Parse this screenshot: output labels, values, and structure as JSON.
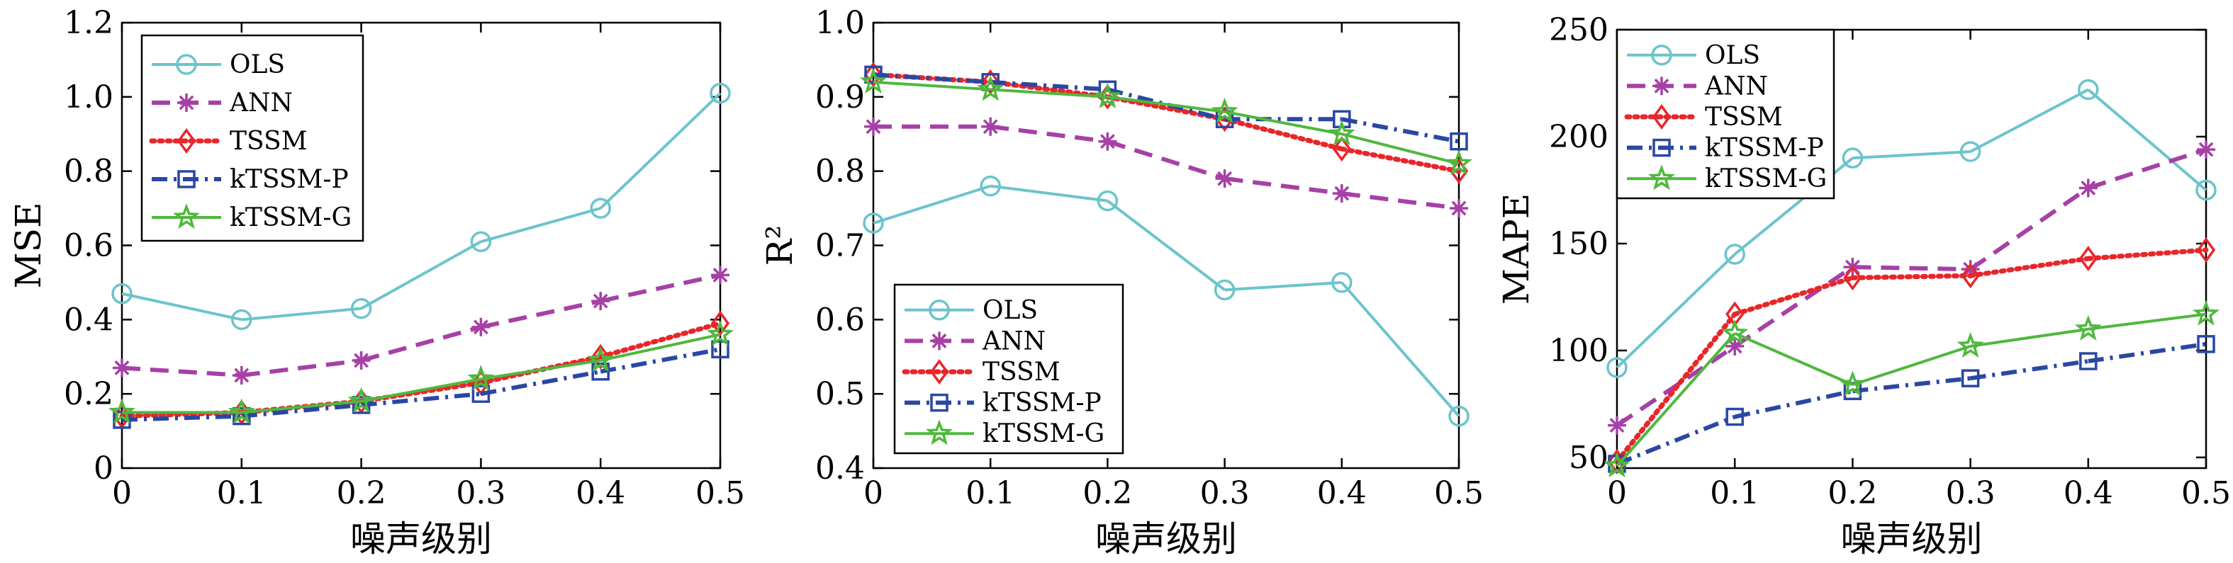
{
  "figure": {
    "background": "#ffffff"
  },
  "series_styles": {
    "OLS": {
      "color": "#6cc4cb",
      "dash": "solid",
      "marker": "circle"
    },
    "ANN": {
      "color": "#a640a6",
      "dash": "dashed",
      "marker": "asterisk"
    },
    "TSSM": {
      "color": "#e8262a",
      "dash": "dotted",
      "marker": "diamond"
    },
    "kTSSM-P": {
      "color": "#2a47a4",
      "dash": "dashdot",
      "marker": "square"
    },
    "kTSSM-G": {
      "color": "#4fb83d",
      "dash": "solid",
      "marker": "star"
    }
  },
  "chart_data": [
    {
      "type": "line",
      "xlabel": "噪声级别",
      "ylabel": "MSE",
      "x": [
        0,
        0.1,
        0.2,
        0.3,
        0.4,
        0.5
      ],
      "xticks": [
        "0",
        "0.1",
        "0.2",
        "0.3",
        "0.4",
        "0.5"
      ],
      "ylim": [
        0,
        1.2
      ],
      "yticks": [
        "0",
        "0.2",
        "0.4",
        "0.6",
        "0.8",
        "1.0",
        "1.2"
      ],
      "legend_placement": "top-left",
      "series": [
        {
          "name": "OLS",
          "values": [
            0.47,
            0.4,
            0.43,
            0.61,
            0.7,
            1.01
          ]
        },
        {
          "name": "ANN",
          "values": [
            0.27,
            0.25,
            0.29,
            0.38,
            0.45,
            0.52
          ]
        },
        {
          "name": "TSSM",
          "values": [
            0.14,
            0.15,
            0.18,
            0.23,
            0.3,
            0.39
          ]
        },
        {
          "name": "kTSSM-P",
          "values": [
            0.13,
            0.14,
            0.17,
            0.2,
            0.26,
            0.32
          ]
        },
        {
          "name": "kTSSM-G",
          "values": [
            0.15,
            0.15,
            0.18,
            0.24,
            0.29,
            0.36
          ]
        }
      ]
    },
    {
      "type": "line",
      "xlabel": "噪声级别",
      "ylabel": "R²",
      "x": [
        0,
        0.1,
        0.2,
        0.3,
        0.4,
        0.5
      ],
      "xticks": [
        "0",
        "0.1",
        "0.2",
        "0.3",
        "0.4",
        "0.5"
      ],
      "ylim": [
        0.4,
        1.0
      ],
      "yticks": [
        "0.4",
        "0.5",
        "0.6",
        "0.7",
        "0.8",
        "0.9",
        "1.0"
      ],
      "legend_placement": "bottom-left",
      "series": [
        {
          "name": "OLS",
          "values": [
            0.73,
            0.78,
            0.76,
            0.64,
            0.65,
            0.47
          ]
        },
        {
          "name": "ANN",
          "values": [
            0.86,
            0.86,
            0.84,
            0.79,
            0.77,
            0.75
          ]
        },
        {
          "name": "TSSM",
          "values": [
            0.93,
            0.92,
            0.9,
            0.87,
            0.83,
            0.8
          ]
        },
        {
          "name": "kTSSM-P",
          "values": [
            0.93,
            0.92,
            0.91,
            0.87,
            0.87,
            0.84
          ]
        },
        {
          "name": "kTSSM-G",
          "values": [
            0.92,
            0.91,
            0.9,
            0.88,
            0.85,
            0.81
          ]
        }
      ]
    },
    {
      "type": "line",
      "xlabel": "噪声级别",
      "ylabel": "MAPE",
      "x": [
        0,
        0.1,
        0.2,
        0.3,
        0.4,
        0.5
      ],
      "xticks": [
        "0",
        "0.1",
        "0.2",
        "0.3",
        "0.4",
        "0.5"
      ],
      "ylim": [
        45,
        250
      ],
      "yticks": [
        "50",
        "100",
        "150",
        "200",
        "250"
      ],
      "legend_placement": "top-left",
      "series": [
        {
          "name": "OLS",
          "values": [
            92,
            145,
            190,
            193,
            222,
            175
          ]
        },
        {
          "name": "ANN",
          "values": [
            65,
            102,
            139,
            138,
            176,
            194
          ]
        },
        {
          "name": "TSSM",
          "values": [
            48,
            117,
            134,
            135,
            143,
            147
          ]
        },
        {
          "name": "kTSSM-P",
          "values": [
            47,
            69,
            81,
            87,
            95,
            103
          ]
        },
        {
          "name": "kTSSM-G",
          "values": [
            46,
            108,
            84,
            102,
            110,
            117
          ]
        }
      ]
    }
  ]
}
